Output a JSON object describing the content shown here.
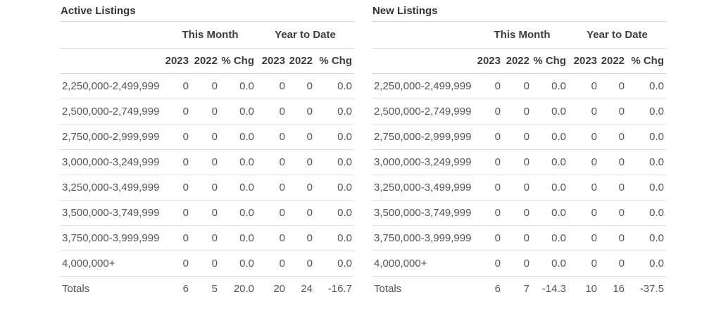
{
  "tables": [
    {
      "title": "Active Listings",
      "group_headers": [
        "This Month",
        "Year to Date"
      ],
      "col_headers": [
        "2023",
        "2022",
        "% Chg",
        "2023",
        "2022",
        "% Chg"
      ],
      "rows": [
        {
          "label": "2,250,000-2,499,999",
          "values": [
            "0",
            "0",
            "0.0",
            "0",
            "0",
            "0.0"
          ]
        },
        {
          "label": "2,500,000-2,749,999",
          "values": [
            "0",
            "0",
            "0.0",
            "0",
            "0",
            "0.0"
          ]
        },
        {
          "label": "2,750,000-2,999,999",
          "values": [
            "0",
            "0",
            "0.0",
            "0",
            "0",
            "0.0"
          ]
        },
        {
          "label": "3,000,000-3,249,999",
          "values": [
            "0",
            "0",
            "0.0",
            "0",
            "0",
            "0.0"
          ]
        },
        {
          "label": "3,250,000-3,499,999",
          "values": [
            "0",
            "0",
            "0.0",
            "0",
            "0",
            "0.0"
          ]
        },
        {
          "label": "3,500,000-3,749,999",
          "values": [
            "0",
            "0",
            "0.0",
            "0",
            "0",
            "0.0"
          ]
        },
        {
          "label": "3,750,000-3,999,999",
          "values": [
            "0",
            "0",
            "0.0",
            "0",
            "0",
            "0.0"
          ]
        },
        {
          "label": "4,000,000+",
          "values": [
            "0",
            "0",
            "0.0",
            "0",
            "0",
            "0.0"
          ]
        }
      ],
      "totals": {
        "label": "Totals",
        "values": [
          "6",
          "5",
          "20.0",
          "20",
          "24",
          "-16.7"
        ]
      }
    },
    {
      "title": "New Listings",
      "group_headers": [
        "This Month",
        "Year to Date"
      ],
      "col_headers": [
        "2023",
        "2022",
        "% Chg",
        "2023",
        "2022",
        "% Chg"
      ],
      "rows": [
        {
          "label": "2,250,000-2,499,999",
          "values": [
            "0",
            "0",
            "0.0",
            "0",
            "0",
            "0.0"
          ]
        },
        {
          "label": "2,500,000-2,749,999",
          "values": [
            "0",
            "0",
            "0.0",
            "0",
            "0",
            "0.0"
          ]
        },
        {
          "label": "2,750,000-2,999,999",
          "values": [
            "0",
            "0",
            "0.0",
            "0",
            "0",
            "0.0"
          ]
        },
        {
          "label": "3,000,000-3,249,999",
          "values": [
            "0",
            "0",
            "0.0",
            "0",
            "0",
            "0.0"
          ]
        },
        {
          "label": "3,250,000-3,499,999",
          "values": [
            "0",
            "0",
            "0.0",
            "0",
            "0",
            "0.0"
          ]
        },
        {
          "label": "3,500,000-3,749,999",
          "values": [
            "0",
            "0",
            "0.0",
            "0",
            "0",
            "0.0"
          ]
        },
        {
          "label": "3,750,000-3,999,999",
          "values": [
            "0",
            "0",
            "0.0",
            "0",
            "0",
            "0.0"
          ]
        },
        {
          "label": "4,000,000+",
          "values": [
            "0",
            "0",
            "0.0",
            "0",
            "0",
            "0.0"
          ]
        }
      ],
      "totals": {
        "label": "Totals",
        "values": [
          "6",
          "7",
          "-14.3",
          "10",
          "16",
          "-37.5"
        ]
      }
    }
  ],
  "colors": {
    "background": "#ffffff",
    "header_text": "#3d3d3d",
    "data_text": "#555555",
    "heavy_rule": "#d6d6d6",
    "light_rule": "#e4e4e4"
  }
}
